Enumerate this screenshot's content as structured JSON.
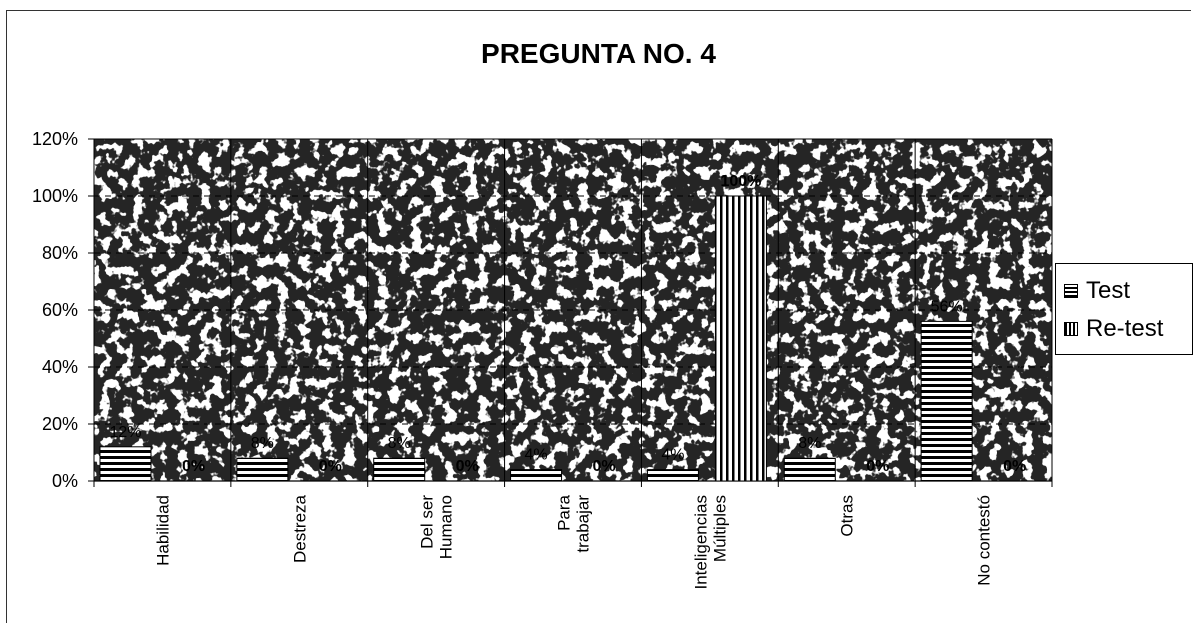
{
  "chart_data": {
    "type": "bar",
    "title": "PREGUNTA NO. 4",
    "categories": [
      "Habilidad",
      "Destreza",
      "Del ser\nHumano",
      "Para\ntrabajar",
      "Inteligencias\nMúltiples",
      "Otras",
      "No contestó"
    ],
    "series": [
      {
        "name": "Test",
        "values": [
          12,
          8,
          8,
          4,
          4,
          8,
          56
        ],
        "labels": [
          "12%",
          "8%",
          "8%",
          "4%",
          "4%",
          "8%",
          "56%"
        ],
        "pattern": "horizontal-stripes"
      },
      {
        "name": "Re-test",
        "values": [
          0,
          0,
          0,
          0,
          100,
          0,
          0
        ],
        "labels": [
          "0%",
          "0%",
          "0%",
          "0%",
          "100%",
          "0%",
          "0%"
        ],
        "pattern": "vertical-stripes"
      }
    ],
    "y_ticks": [
      "0%",
      "20%",
      "40%",
      "60%",
      "80%",
      "100%",
      "120%"
    ],
    "ylim": [
      0,
      120
    ],
    "grid": "dashed-horizontal",
    "legend_position": "right",
    "colors": {
      "bar_fill": "#ffffff",
      "stripe": "#000000",
      "grid": "#000000"
    }
  }
}
